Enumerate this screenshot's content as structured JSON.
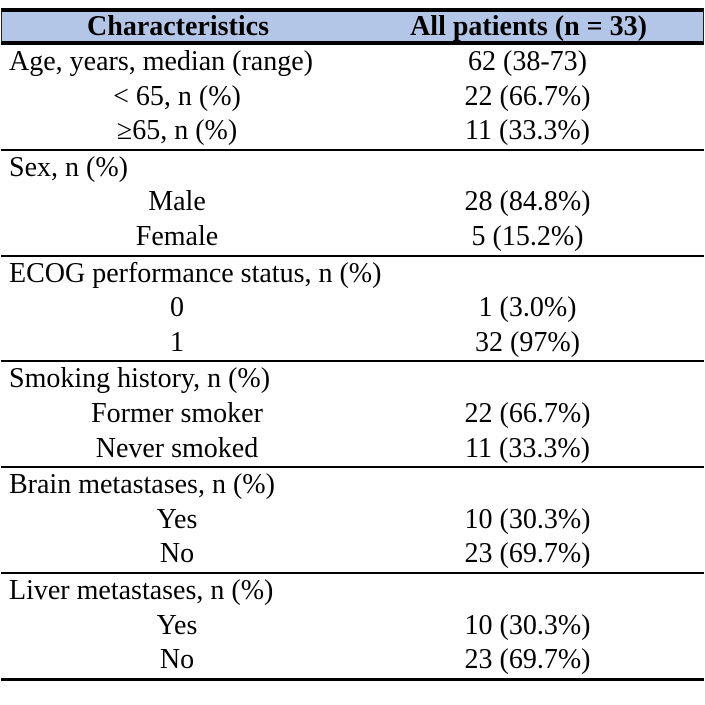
{
  "table": {
    "title_semantic": "patient-characteristics-table",
    "header": {
      "col1": "Characteristics",
      "col2": "All patients (n = 33)"
    },
    "style": {
      "header_bg": "#B4C6E7",
      "border_color": "#000000",
      "text_color": "#000000"
    },
    "sections": [
      {
        "rows": [
          {
            "label": "Age, years, median (range)",
            "value": "62 (38-73)",
            "indent": false
          },
          {
            "label": "< 65, n (%)",
            "value": "22 (66.7%)",
            "indent": true
          },
          {
            "label": "≥65, n (%)",
            "value": "11 (33.3%)",
            "indent": true
          }
        ]
      },
      {
        "rows": [
          {
            "label": "Sex, n (%)",
            "value": "",
            "indent": false
          },
          {
            "label": "Male",
            "value": "28 (84.8%)",
            "indent": true
          },
          {
            "label": "Female",
            "value": "5 (15.2%)",
            "indent": true
          }
        ]
      },
      {
        "rows": [
          {
            "label": "ECOG performance status, n (%)",
            "value": "",
            "indent": false
          },
          {
            "label": "0",
            "value": "1 (3.0%)",
            "indent": true
          },
          {
            "label": "1",
            "value": "32 (97%)",
            "indent": true
          }
        ]
      },
      {
        "rows": [
          {
            "label": "Smoking history, n (%)",
            "value": "",
            "indent": false
          },
          {
            "label": "Former smoker",
            "value": "22 (66.7%)",
            "indent": true
          },
          {
            "label": "Never smoked",
            "value": "11 (33.3%)",
            "indent": true
          }
        ]
      },
      {
        "rows": [
          {
            "label": "Brain metastases, n (%)",
            "value": "",
            "indent": false
          },
          {
            "label": "Yes",
            "value": "10 (30.3%)",
            "indent": true
          },
          {
            "label": "No",
            "value": "23 (69.7%)",
            "indent": true
          }
        ]
      },
      {
        "rows": [
          {
            "label": "Liver metastases, n (%)",
            "value": "",
            "indent": false
          },
          {
            "label": "Yes",
            "value": "10 (30.3%)",
            "indent": true
          },
          {
            "label": "No",
            "value": "23 (69.7%)",
            "indent": true
          }
        ]
      }
    ]
  },
  "chart_data": {
    "type": "table",
    "title": "",
    "columns": [
      "Characteristics",
      "All patients (n = 33)"
    ],
    "rows": [
      [
        "Age, years, median (range)",
        "62 (38-73)"
      ],
      [
        "< 65, n (%)",
        "22 (66.7%)"
      ],
      [
        "≥65, n (%)",
        "11 (33.3%)"
      ],
      [
        "Sex, n (%)",
        ""
      ],
      [
        "Male",
        "28 (84.8%)"
      ],
      [
        "Female",
        "5 (15.2%)"
      ],
      [
        "ECOG performance status, n (%)",
        ""
      ],
      [
        "0",
        "1 (3.0%)"
      ],
      [
        "1",
        "32 (97%)"
      ],
      [
        "Smoking history, n (%)",
        ""
      ],
      [
        "Former smoker",
        "22 (66.7%)"
      ],
      [
        "Never smoked",
        "11 (33.3%)"
      ],
      [
        "Brain metastases, n (%)",
        ""
      ],
      [
        "Yes",
        "10 (30.3%)"
      ],
      [
        "No",
        "23 (69.7%)"
      ],
      [
        "Liver metastases, n (%)",
        ""
      ],
      [
        "Yes",
        "10 (30.3%)"
      ],
      [
        "No",
        "23 (69.7%)"
      ]
    ]
  }
}
